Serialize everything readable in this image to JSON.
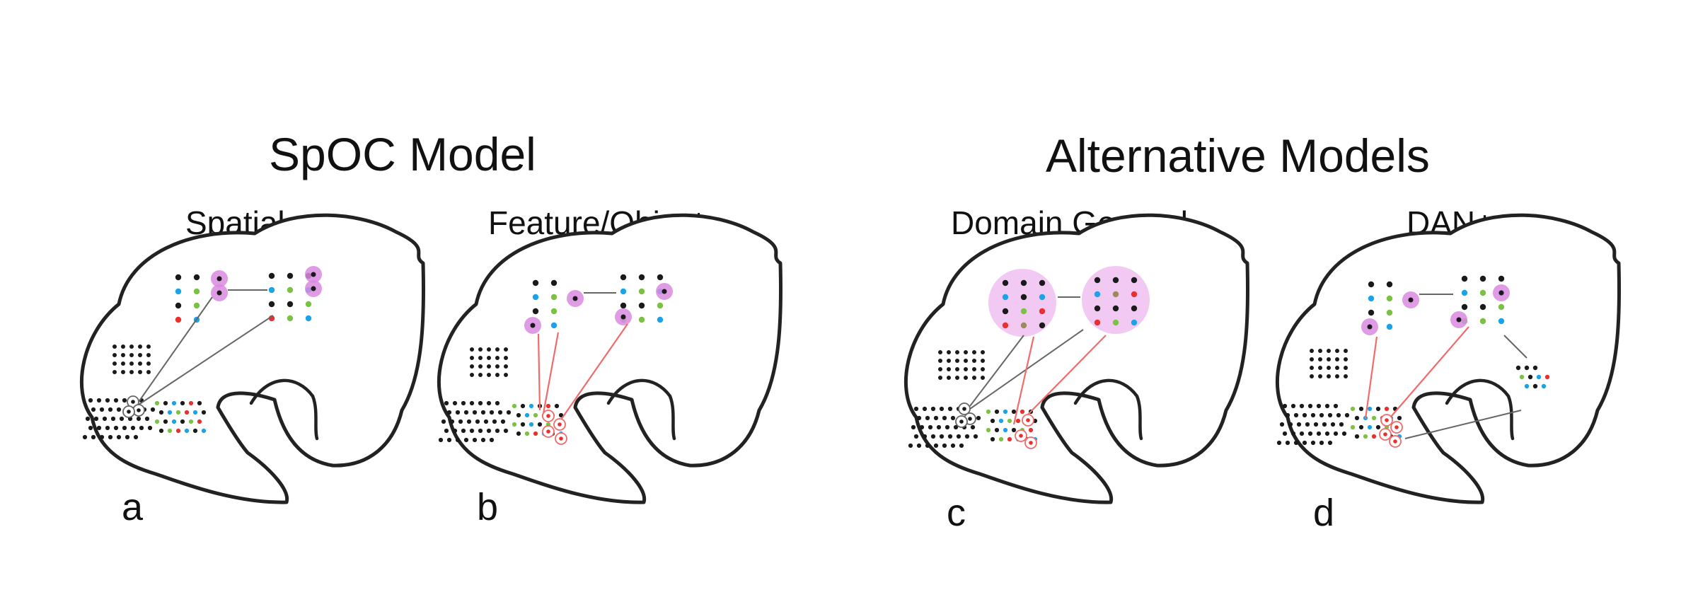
{
  "headings": {
    "left": "SpOC Model",
    "right": "Alternative Models"
  },
  "panels": [
    {
      "id": "a",
      "title": "Spatial",
      "letter": "a"
    },
    {
      "id": "b",
      "title": "Feature/Object",
      "letter": "b"
    },
    {
      "id": "c",
      "title": "Domain General",
      "letter": "c"
    },
    {
      "id": "d",
      "title": "DAN+",
      "letter": "d"
    }
  ],
  "colors": {
    "outline": "#222222",
    "black_dot": "#1a1a1a",
    "blue_dot": "#1aa3e8",
    "green_dot": "#7cc242",
    "red_dot": "#e8312f",
    "olive_dot": "#9b8a5a",
    "highlight": "#d98be0",
    "highlight_fill": "#f0c6f2",
    "red_line": "#f26b6b",
    "gray_line": "#666666"
  }
}
